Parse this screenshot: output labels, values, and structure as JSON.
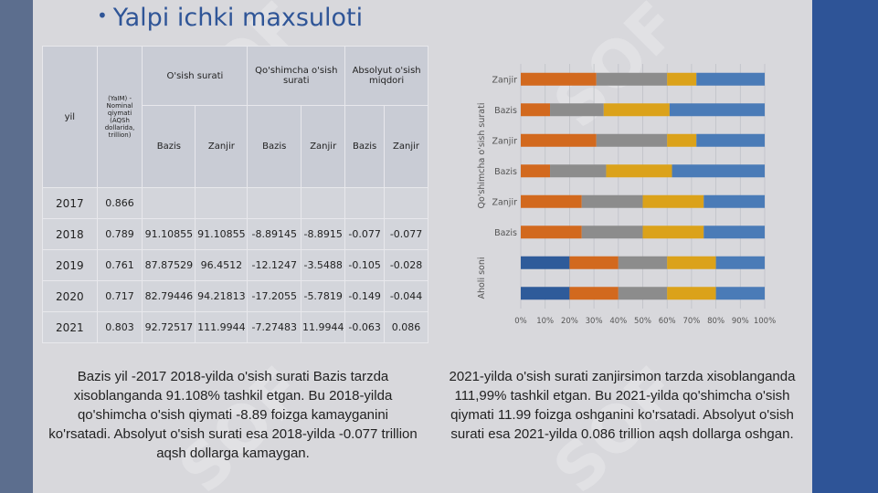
{
  "slide": {
    "title": "Yalpi ichki maxsuloti",
    "bullet": "•"
  },
  "table": {
    "headers": {
      "yil": "yil",
      "nominal": "(YaIM) - Nominal qiymati (AQSh dollarida, trillion)",
      "osish": "O'sish surati",
      "qoshimcha": "Qo'shimcha o'sish surati",
      "absolyut": "Absolyut o'sish miqdori",
      "bazis": "Bazis",
      "zanjir": "Zanjir"
    },
    "rows": [
      {
        "year": "2017",
        "nominal": "0.866",
        "osish_bazis": "",
        "osish_zanjir": "",
        "qosh_bazis": "",
        "qosh_zanjir": "",
        "abs_bazis": "",
        "abs_zanjir": ""
      },
      {
        "year": "2018",
        "nominal": "0.789",
        "osish_bazis": "91.10855",
        "osish_zanjir": "91.10855",
        "qosh_bazis": "-8.89145",
        "qosh_zanjir": "-8.8915",
        "abs_bazis": "-0.077",
        "abs_zanjir": "-0.077"
      },
      {
        "year": "2019",
        "nominal": "0.761",
        "osish_bazis": "87.87529",
        "osish_zanjir": "96.4512",
        "qosh_bazis": "-12.1247",
        "qosh_zanjir": "-3.5488",
        "abs_bazis": "-0.105",
        "abs_zanjir": "-0.028"
      },
      {
        "year": "2020",
        "nominal": "0.717",
        "osish_bazis": "82.79446",
        "osish_zanjir": "94.21813",
        "qosh_bazis": "-17.2055",
        "qosh_zanjir": "-5.7819",
        "abs_bazis": "-0.149",
        "abs_zanjir": "-0.044"
      },
      {
        "year": "2021",
        "nominal": "0.803",
        "osish_bazis": "92.72517",
        "osish_zanjir": "111.9944",
        "qosh_bazis": "-7.27483",
        "qosh_zanjir": "11.9944",
        "abs_bazis": "-0.063",
        "abs_zanjir": "0.086"
      }
    ]
  },
  "chart_data": {
    "type": "bar",
    "orientation": "horizontal",
    "stacked": "percent",
    "categories_top_to_bottom": [
      "Zanjir",
      "Bazis",
      "Zanjir",
      "Bazis",
      "Zanjir",
      "Bazis",
      "",
      ""
    ],
    "group_labels": [
      "Qo'shimcha o'sish surati",
      "Aholi soni"
    ],
    "xlim": [
      0,
      100
    ],
    "xticks": [
      "0%",
      "10%",
      "20%",
      "30%",
      "40%",
      "50%",
      "60%",
      "70%",
      "80%",
      "90%",
      "100%"
    ],
    "grid": true,
    "colors": [
      "#2e5b9a",
      "#d2691e",
      "#8c8c8c",
      "#dba21a",
      "#4a7bb7"
    ],
    "rows": [
      [
        0,
        31,
        29,
        12,
        28
      ],
      [
        0,
        12,
        22,
        27,
        39
      ],
      [
        0,
        31,
        29,
        12,
        28
      ],
      [
        0,
        12,
        23,
        27,
        38
      ],
      [
        0,
        25,
        25,
        25,
        25
      ],
      [
        0,
        25,
        25,
        25,
        25
      ],
      [
        20,
        20,
        20,
        20,
        20
      ],
      [
        20,
        20,
        20,
        20,
        20
      ]
    ]
  },
  "paragraphs": {
    "left": "Bazis yil -2017   2018-yilda o'sish surati Bazis tarzda xisoblanganda 91.108% tashkil etgan. Bu 2018-yilda qo'shimcha o'sish qiymati -8.89 foizga kamayganini ko'rsatadi. Absolyut o'sish surati esa 2018-yilda -0.077 trillion aqsh dollarga kamaygan.",
    "right": "2021-yilda o'sish surati zanjirsimon tarzda xisoblanganda 111,99% tashkil etgan. Bu 2021-yilda qo'shimcha o'sish qiymati 11.99 foizga oshganini ko'rsatadi. Absolyut o'sish surati esa 2021-yilda 0.086 trillion aqsh dollarga  oshgan."
  },
  "watermark": {
    "text": "SOF"
  }
}
